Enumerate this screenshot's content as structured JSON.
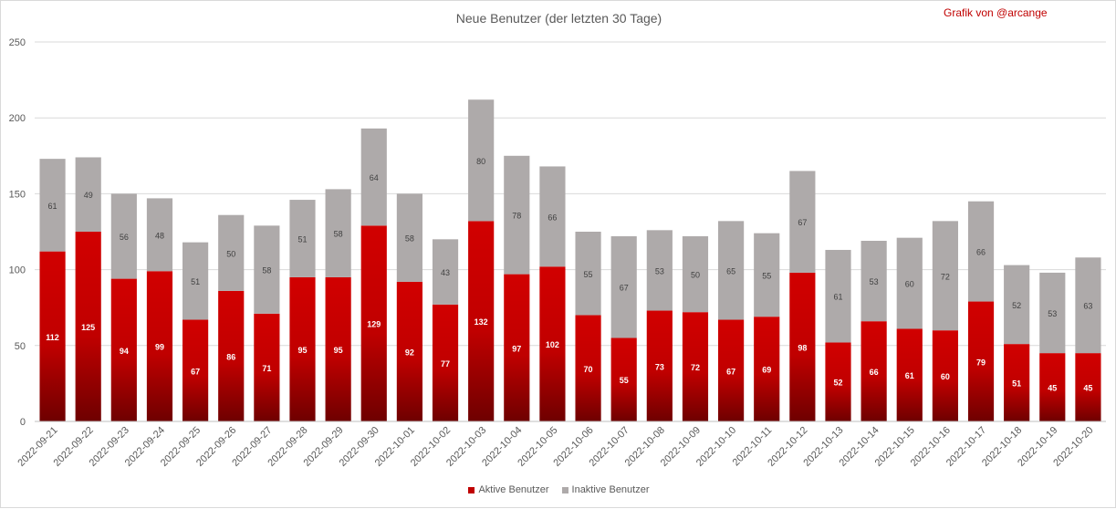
{
  "header": {
    "title": "Neue Benutzer (der letzten 30 Tage)",
    "credit": "Grafik von @arcange"
  },
  "chart_data": {
    "type": "bar",
    "stacked": true,
    "title": "Neue Benutzer (der letzten 30 Tage)",
    "categories": [
      "2022-09-21",
      "2022-09-22",
      "2022-09-23",
      "2022-09-24",
      "2022-09-25",
      "2022-09-26",
      "2022-09-27",
      "2022-09-28",
      "2022-09-29",
      "2022-09-30",
      "2022-10-01",
      "2022-10-02",
      "2022-10-03",
      "2022-10-04",
      "2022-10-05",
      "2022-10-06",
      "2022-10-07",
      "2022-10-08",
      "2022-10-09",
      "2022-10-10",
      "2022-10-11",
      "2022-10-12",
      "2022-10-13",
      "2022-10-14",
      "2022-10-15",
      "2022-10-16",
      "2022-10-17",
      "2022-10-18",
      "2022-10-19",
      "2022-10-20"
    ],
    "series": [
      {
        "name": "Aktive Benutzer",
        "color": "#c00000",
        "values": [
          112,
          125,
          94,
          99,
          67,
          86,
          71,
          95,
          95,
          129,
          92,
          77,
          132,
          97,
          102,
          70,
          55,
          73,
          72,
          67,
          69,
          98,
          52,
          66,
          61,
          60,
          79,
          51,
          45,
          45
        ]
      },
      {
        "name": "Inaktive Benutzer",
        "color": "#aeaaaa",
        "values": [
          61,
          49,
          56,
          48,
          51,
          50,
          58,
          51,
          58,
          64,
          58,
          43,
          80,
          78,
          66,
          55,
          67,
          53,
          50,
          65,
          55,
          67,
          61,
          53,
          60,
          72,
          66,
          52,
          53,
          63
        ]
      }
    ],
    "ylim": [
      0,
      250
    ],
    "yticks": [
      0,
      50,
      100,
      150,
      200,
      250
    ],
    "grid": true,
    "legend_position": "bottom"
  }
}
